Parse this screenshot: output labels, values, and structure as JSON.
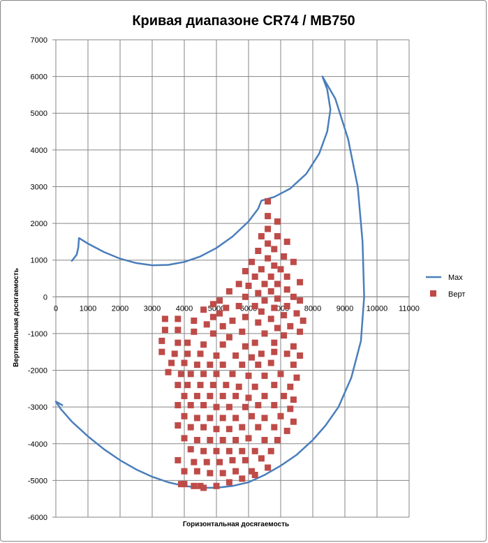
{
  "chart_data": {
    "type": "scatter",
    "title": "Кривая диапазоне CR74 / MB750",
    "xlabel": "Горизонтальная досягаемость",
    "ylabel": "Вертикальная досягаемость",
    "xlim": [
      0,
      11000
    ],
    "ylim": [
      -6000,
      7000
    ],
    "x_ticks": [
      0,
      1000,
      2000,
      3000,
      4000,
      5000,
      6000,
      7000,
      8000,
      9000,
      10000,
      11000
    ],
    "y_ticks": [
      7000,
      6000,
      5000,
      4000,
      3000,
      2000,
      1000,
      0,
      -1000,
      -2000,
      -3000,
      -4000,
      -5000,
      -6000
    ],
    "grid": true,
    "legend_position": "right",
    "colors": {
      "max": "#4a7ebb",
      "vert": "#be4b48",
      "grid": "#868686"
    },
    "series": [
      {
        "name": "Max",
        "type": "line",
        "points": [
          [
            500,
            980
          ],
          [
            650,
            1150
          ],
          [
            700,
            1350
          ],
          [
            720,
            1600
          ],
          [
            1000,
            1450
          ],
          [
            1500,
            1220
          ],
          [
            2000,
            1040
          ],
          [
            2500,
            920
          ],
          [
            3000,
            860
          ],
          [
            3500,
            870
          ],
          [
            4000,
            950
          ],
          [
            4500,
            1100
          ],
          [
            5000,
            1330
          ],
          [
            5500,
            1640
          ],
          [
            6000,
            2050
          ],
          [
            6300,
            2400
          ],
          [
            6400,
            2620
          ],
          [
            6800,
            2720
          ],
          [
            7300,
            2950
          ],
          [
            7800,
            3350
          ],
          [
            8200,
            3900
          ],
          [
            8450,
            4500
          ],
          [
            8550,
            5100
          ],
          [
            8450,
            5650
          ],
          [
            8300,
            6000
          ],
          [
            8700,
            5400
          ],
          [
            9100,
            4300
          ],
          [
            9400,
            3000
          ],
          [
            9550,
            1500
          ],
          [
            9600,
            0
          ],
          [
            9500,
            -1200
          ],
          [
            9200,
            -2200
          ],
          [
            8800,
            -3000
          ],
          [
            8400,
            -3500
          ],
          [
            8000,
            -3900
          ],
          [
            7500,
            -4300
          ],
          [
            7000,
            -4600
          ],
          [
            6500,
            -4850
          ],
          [
            6000,
            -5050
          ],
          [
            5500,
            -5150
          ],
          [
            5000,
            -5200
          ],
          [
            4500,
            -5200
          ],
          [
            4000,
            -5150
          ],
          [
            3500,
            -5050
          ],
          [
            3000,
            -4900
          ],
          [
            2500,
            -4700
          ],
          [
            2000,
            -4450
          ],
          [
            1500,
            -4150
          ],
          [
            1000,
            -3800
          ],
          [
            500,
            -3400
          ],
          [
            150,
            -3050
          ],
          [
            0,
            -2850
          ],
          [
            200,
            -2950
          ]
        ]
      },
      {
        "name": "Верт",
        "type": "scatter",
        "points": [
          [
            6600,
            2600
          ],
          [
            6600,
            2200
          ],
          [
            6900,
            2050
          ],
          [
            6600,
            1850
          ],
          [
            6900,
            1650
          ],
          [
            6400,
            1650
          ],
          [
            7200,
            1500
          ],
          [
            6600,
            1450
          ],
          [
            6300,
            1250
          ],
          [
            6800,
            1300
          ],
          [
            7100,
            1100
          ],
          [
            6600,
            1050
          ],
          [
            7400,
            950
          ],
          [
            6100,
            950
          ],
          [
            6800,
            850
          ],
          [
            6400,
            750
          ],
          [
            7000,
            750
          ],
          [
            5900,
            700
          ],
          [
            7200,
            550
          ],
          [
            6700,
            550
          ],
          [
            6200,
            550
          ],
          [
            5700,
            350
          ],
          [
            7600,
            400
          ],
          [
            6500,
            350
          ],
          [
            6900,
            350
          ],
          [
            6000,
            300
          ],
          [
            7200,
            200
          ],
          [
            5400,
            150
          ],
          [
            6700,
            150
          ],
          [
            6300,
            100
          ],
          [
            7400,
            0
          ],
          [
            5900,
            0
          ],
          [
            5100,
            -100
          ],
          [
            6900,
            -50
          ],
          [
            7600,
            -100
          ],
          [
            6500,
            -100
          ],
          [
            4900,
            -200
          ],
          [
            6200,
            -250
          ],
          [
            5700,
            -250
          ],
          [
            7200,
            -250
          ],
          [
            5300,
            -300
          ],
          [
            6800,
            -300
          ],
          [
            4600,
            -350
          ],
          [
            6400,
            -400
          ],
          [
            7500,
            -450
          ],
          [
            5100,
            -450
          ],
          [
            7100,
            -500
          ],
          [
            4900,
            -550
          ],
          [
            5900,
            -550
          ],
          [
            6700,
            -600
          ],
          [
            3400,
            -600
          ],
          [
            3800,
            -600
          ],
          [
            7700,
            -650
          ],
          [
            4300,
            -650
          ],
          [
            5500,
            -650
          ],
          [
            6300,
            -700
          ],
          [
            4700,
            -750
          ],
          [
            7300,
            -800
          ],
          [
            5200,
            -800
          ],
          [
            6900,
            -850
          ],
          [
            3400,
            -900
          ],
          [
            3800,
            -900
          ],
          [
            4300,
            -950
          ],
          [
            7600,
            -950
          ],
          [
            5800,
            -950
          ],
          [
            4900,
            -1000
          ],
          [
            6500,
            -1000
          ],
          [
            7100,
            -1050
          ],
          [
            5400,
            -1100
          ],
          [
            3300,
            -1200
          ],
          [
            3800,
            -1250
          ],
          [
            4100,
            -1250
          ],
          [
            6200,
            -1250
          ],
          [
            6800,
            -1250
          ],
          [
            4600,
            -1300
          ],
          [
            7400,
            -1350
          ],
          [
            5200,
            -1300
          ],
          [
            5900,
            -1350
          ],
          [
            3300,
            -1500
          ],
          [
            3700,
            -1550
          ],
          [
            4100,
            -1550
          ],
          [
            4500,
            -1550
          ],
          [
            6400,
            -1550
          ],
          [
            7200,
            -1550
          ],
          [
            6800,
            -1500
          ],
          [
            5000,
            -1600
          ],
          [
            5600,
            -1600
          ],
          [
            7600,
            -1600
          ],
          [
            6100,
            -1650
          ],
          [
            3600,
            -1800
          ],
          [
            4000,
            -1800
          ],
          [
            4400,
            -1850
          ],
          [
            4800,
            -1850
          ],
          [
            6700,
            -1800
          ],
          [
            5200,
            -1850
          ],
          [
            7400,
            -1850
          ],
          [
            5800,
            -1850
          ],
          [
            6300,
            -1850
          ],
          [
            3500,
            -2050
          ],
          [
            3900,
            -2100
          ],
          [
            4200,
            -2100
          ],
          [
            4600,
            -2100
          ],
          [
            5000,
            -2100
          ],
          [
            7000,
            -2100
          ],
          [
            5500,
            -2100
          ],
          [
            6500,
            -2150
          ],
          [
            6000,
            -2150
          ],
          [
            7500,
            -2200
          ],
          [
            3800,
            -2400
          ],
          [
            4100,
            -2400
          ],
          [
            4500,
            -2400
          ],
          [
            4900,
            -2400
          ],
          [
            5300,
            -2400
          ],
          [
            6800,
            -2400
          ],
          [
            5700,
            -2450
          ],
          [
            6200,
            -2450
          ],
          [
            7300,
            -2450
          ],
          [
            4000,
            -2700
          ],
          [
            4400,
            -2700
          ],
          [
            4800,
            -2700
          ],
          [
            5200,
            -2700
          ],
          [
            5600,
            -2700
          ],
          [
            7100,
            -2700
          ],
          [
            6000,
            -2750
          ],
          [
            6500,
            -2700
          ],
          [
            7400,
            -2800
          ],
          [
            3800,
            -2950
          ],
          [
            4200,
            -2950
          ],
          [
            4600,
            -2950
          ],
          [
            5000,
            -3000
          ],
          [
            5400,
            -3000
          ],
          [
            5900,
            -3000
          ],
          [
            6300,
            -2950
          ],
          [
            6800,
            -2950
          ],
          [
            7300,
            -3050
          ],
          [
            4000,
            -3250
          ],
          [
            4400,
            -3300
          ],
          [
            4800,
            -3300
          ],
          [
            5200,
            -3300
          ],
          [
            5600,
            -3300
          ],
          [
            6100,
            -3250
          ],
          [
            6500,
            -3300
          ],
          [
            7000,
            -3250
          ],
          [
            7400,
            -3400
          ],
          [
            3800,
            -3500
          ],
          [
            4200,
            -3550
          ],
          [
            4600,
            -3550
          ],
          [
            5000,
            -3600
          ],
          [
            5400,
            -3600
          ],
          [
            5800,
            -3550
          ],
          [
            6300,
            -3550
          ],
          [
            6800,
            -3550
          ],
          [
            7200,
            -3650
          ],
          [
            4000,
            -3850
          ],
          [
            4400,
            -3900
          ],
          [
            4800,
            -3900
          ],
          [
            5200,
            -3900
          ],
          [
            5600,
            -3900
          ],
          [
            6000,
            -3850
          ],
          [
            6500,
            -3900
          ],
          [
            6900,
            -3900
          ],
          [
            4200,
            -4150
          ],
          [
            4600,
            -4200
          ],
          [
            5000,
            -4200
          ],
          [
            5400,
            -4200
          ],
          [
            5800,
            -4200
          ],
          [
            6200,
            -4200
          ],
          [
            6700,
            -4200
          ],
          [
            3800,
            -4450
          ],
          [
            4300,
            -4500
          ],
          [
            4700,
            -4500
          ],
          [
            5100,
            -4500
          ],
          [
            5500,
            -4450
          ],
          [
            5900,
            -4450
          ],
          [
            6400,
            -4400
          ],
          [
            4000,
            -4750
          ],
          [
            4400,
            -4750
          ],
          [
            4800,
            -4800
          ],
          [
            5200,
            -4800
          ],
          [
            5600,
            -4750
          ],
          [
            6100,
            -4750
          ],
          [
            6600,
            -4650
          ],
          [
            3900,
            -5100
          ],
          [
            4300,
            -5150
          ],
          [
            4600,
            -5200
          ],
          [
            5000,
            -5150
          ],
          [
            5400,
            -5050
          ],
          [
            5800,
            -4950
          ],
          [
            6200,
            -4850
          ],
          [
            4000,
            -5100
          ],
          [
            4500,
            -5150
          ]
        ]
      }
    ]
  }
}
